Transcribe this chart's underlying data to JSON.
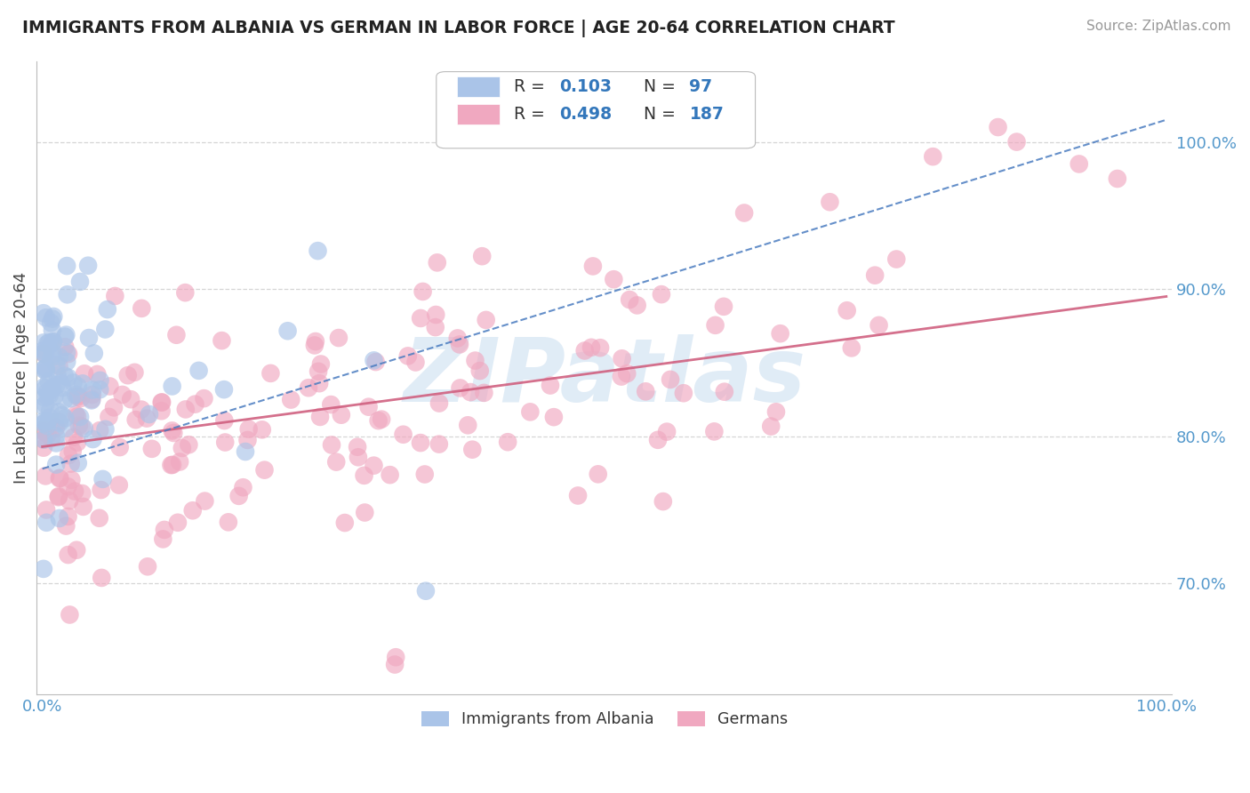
{
  "title": "IMMIGRANTS FROM ALBANIA VS GERMAN IN LABOR FORCE | AGE 20-64 CORRELATION CHART",
  "source": "Source: ZipAtlas.com",
  "ylabel": "In Labor Force | Age 20-64",
  "albania_R": 0.103,
  "albania_N": 97,
  "german_R": 0.498,
  "german_N": 187,
  "albania_color": "#aac4e8",
  "german_color": "#f0a8c0",
  "albania_line_color": "#4a7cc0",
  "german_line_color": "#d06080",
  "watermark_text": "ZIPatlas",
  "background_color": "#ffffff",
  "grid_color": "#cccccc",
  "tick_color": "#5599cc",
  "title_color": "#222222",
  "ylabel_color": "#444444",
  "source_color": "#999999",
  "legend_text_color": "#333333",
  "legend_val_color": "#3377bb",
  "xlim": [
    -0.005,
    1.005
  ],
  "ylim": [
    0.625,
    1.055
  ],
  "ytick_vals": [
    0.7,
    0.8,
    0.9,
    1.0
  ],
  "ytick_labels": [
    "70.0%",
    "80.0%",
    "90.0%",
    "100.0%"
  ],
  "xtick_vals": [
    0.0,
    1.0
  ],
  "xtick_labels": [
    "0.0%",
    "100.0%"
  ]
}
